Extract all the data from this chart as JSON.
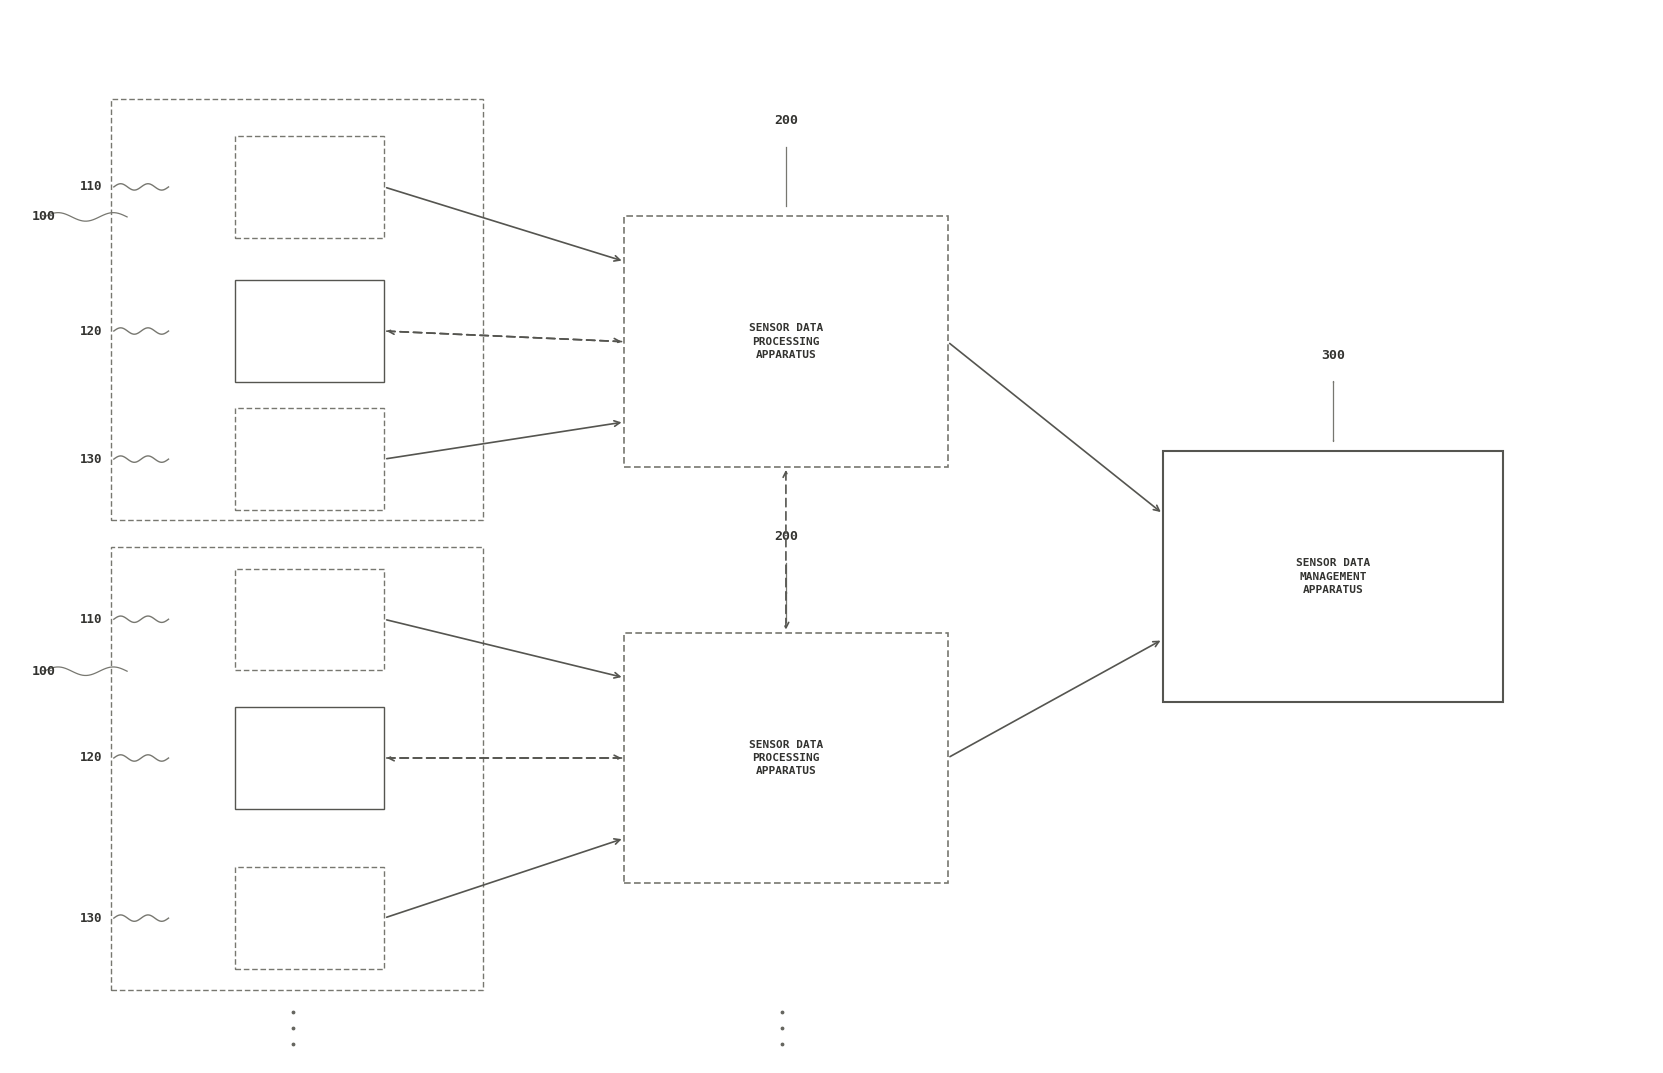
{
  "fig_width": 16.63,
  "fig_height": 10.73,
  "edge_color": "#777770",
  "text_color": "#333330",
  "arrow_color": "#555550",
  "group_top_label": "100",
  "group_bottom_label": "100",
  "proc_top_label": "200",
  "proc_bottom_label": "200",
  "mgmt_label": "300",
  "proc_text": "SENSOR DATA\nPROCESSING\nAPPARATUS",
  "mgmt_text": "SENSOR DATA\nMANAGEMENT\nAPPARATUS",
  "sensor_labels_top": [
    "110",
    "120",
    "130"
  ],
  "sensor_labels_bot": [
    "110",
    "120",
    "130"
  ]
}
